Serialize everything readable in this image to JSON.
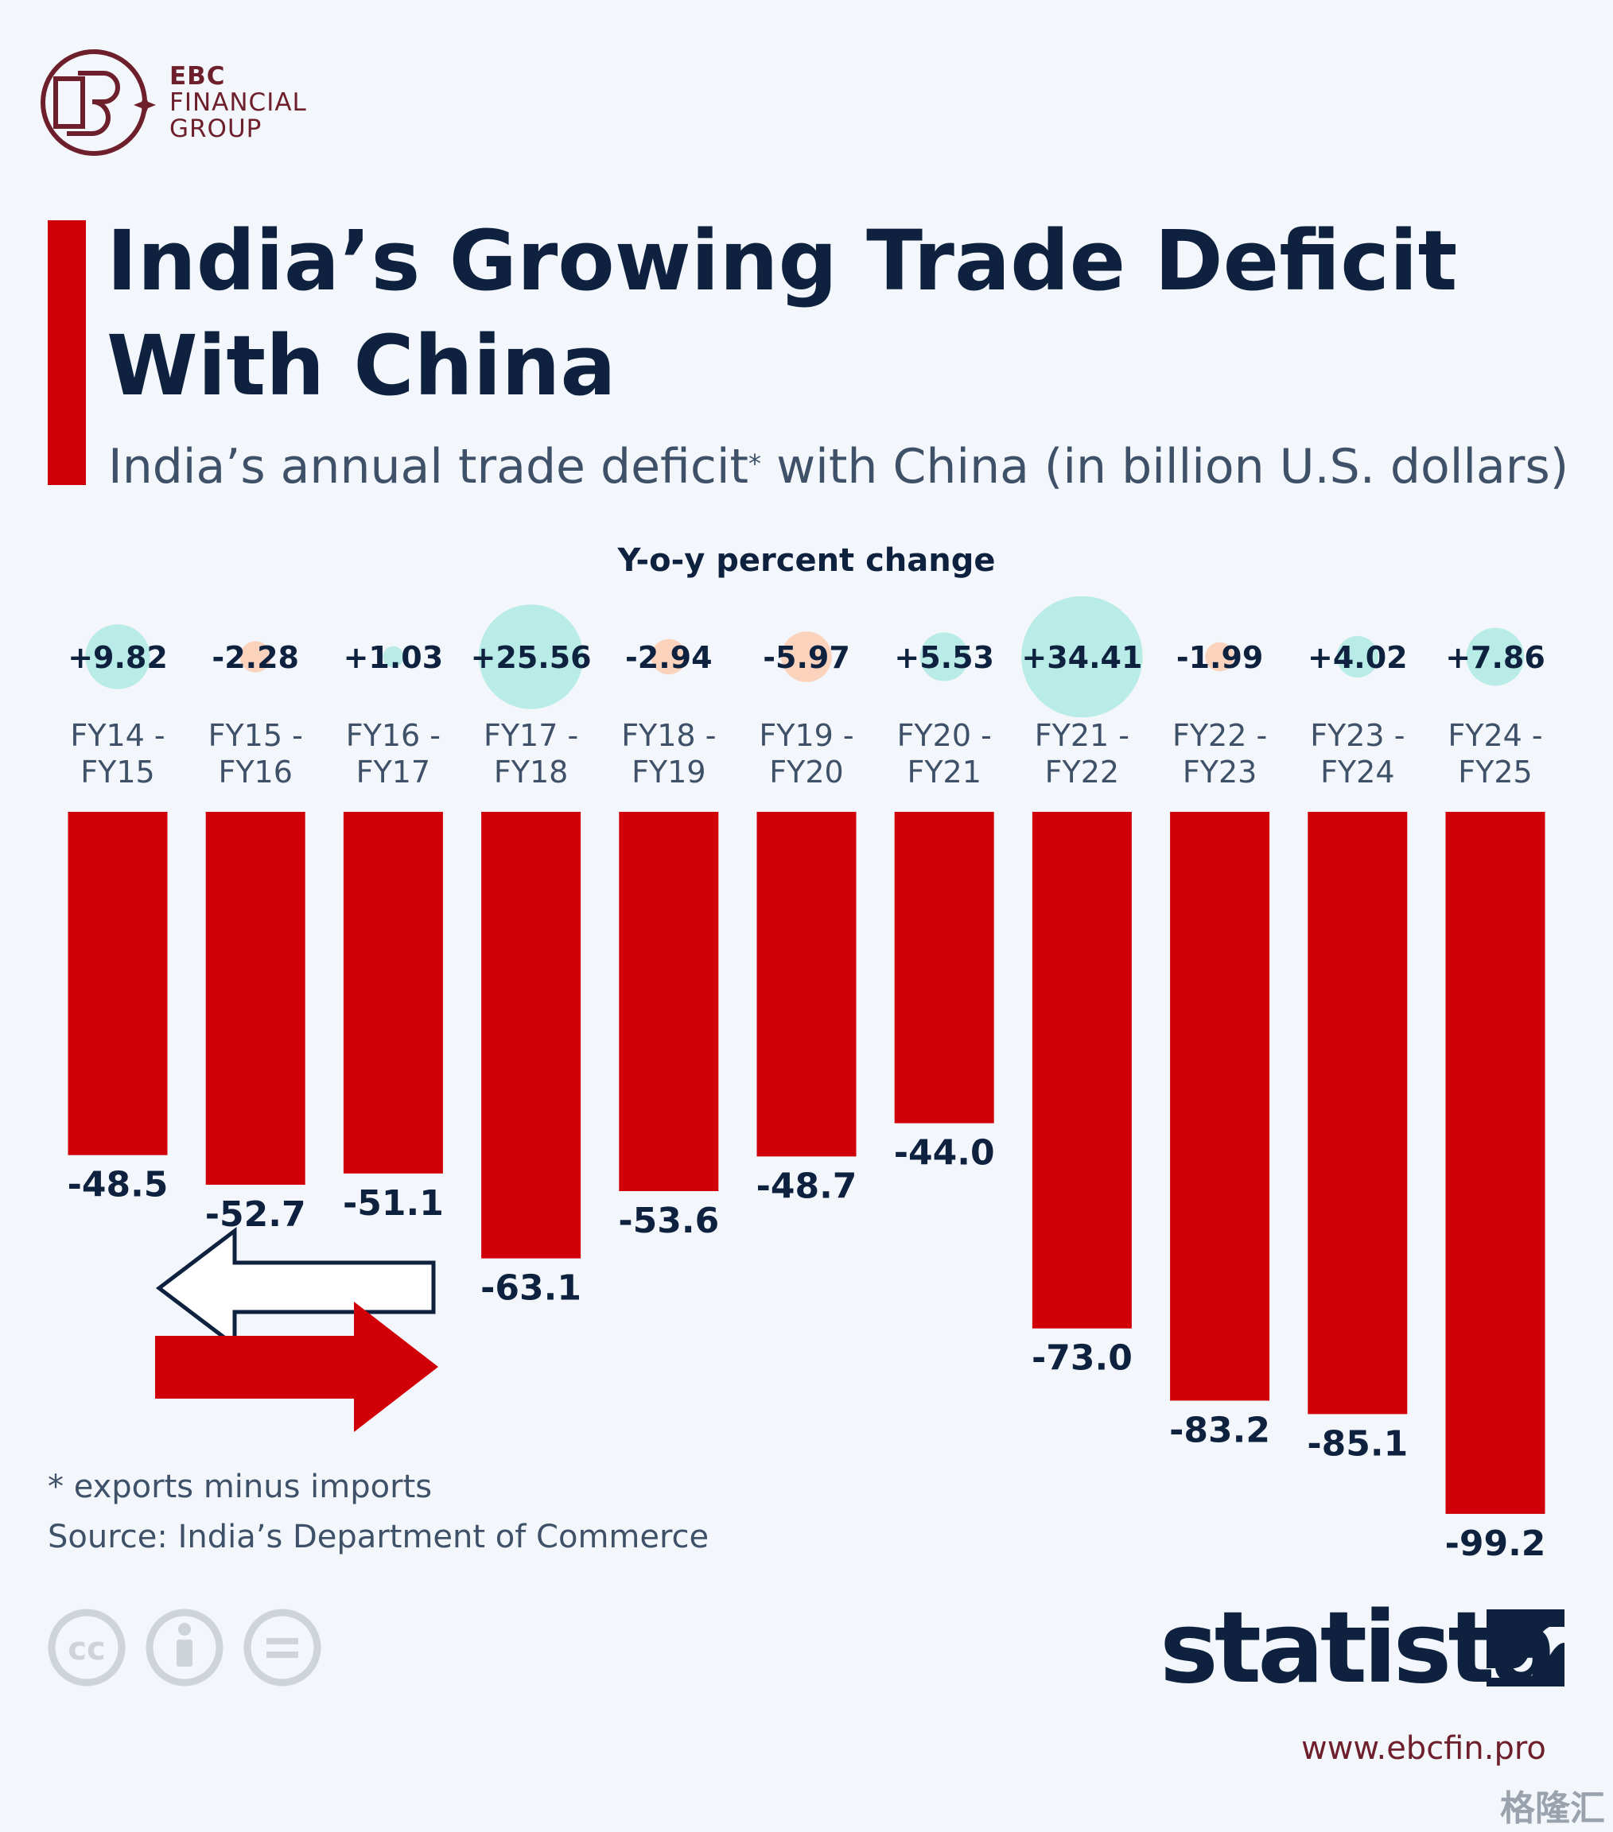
{
  "brand": {
    "line1": "EBC",
    "line2": "FINANCIAL",
    "line3": "GROUP"
  },
  "header": {
    "title_line1": "India’s Growing Trade Deficit",
    "title_line2": "With China",
    "subtitle_before": "India’s annual trade deficit",
    "subtitle_star": "*",
    "subtitle_after": " with China (in billion U.S. dollars)"
  },
  "yoy_title": "Y-o-y percent change",
  "footer": {
    "note": "* exports minus imports",
    "source": "Source: India’s Department of Commerce",
    "statista": "statista",
    "site": "www.ebcfin.pro",
    "watermark": "格隆汇"
  },
  "icons": [
    "ebc-logo-icon",
    "cc-icon",
    "by-person-icon",
    "nd-equals-icon",
    "statista-logo-icon",
    "trade-arrows-icon"
  ],
  "colors": {
    "bar": "#d10008",
    "positive_bubble": "#b9ece6",
    "negative_bubble": "#fbd3bd",
    "title": "#0e2240",
    "brand": "#6e1f2c",
    "background": "#f3f6fa"
  },
  "chart_data": {
    "type": "bar",
    "title": "India’s Growing Trade Deficit With China",
    "subtitle": "India’s annual trade deficit* with China (in billion U.S. dollars)",
    "categories": [
      [
        "FY14 -",
        "FY15"
      ],
      [
        "FY15 -",
        "FY16"
      ],
      [
        "FY16 -",
        "FY17"
      ],
      [
        "FY17 -",
        "FY18"
      ],
      [
        "FY18 -",
        "FY19"
      ],
      [
        "FY19 -",
        "FY20"
      ],
      [
        "FY20 -",
        "FY21"
      ],
      [
        "FY21 -",
        "FY22"
      ],
      [
        "FY22 -",
        "FY23"
      ],
      [
        "FY23 -",
        "FY24"
      ],
      [
        "FY24 -",
        "FY25"
      ]
    ],
    "values": [
      -48.5,
      -52.7,
      -51.1,
      -63.1,
      -53.6,
      -48.7,
      -44.0,
      -73.0,
      -83.2,
      -85.1,
      -99.2
    ],
    "value_labels": [
      "-48.5",
      "-52.7",
      "-51.1",
      "-63.1",
      "-53.6",
      "-48.7",
      "-44.0",
      "-73.0",
      "-83.2",
      "-85.1",
      "-99.2"
    ],
    "yoy_change": [
      9.82,
      -2.28,
      1.03,
      25.56,
      -2.94,
      -5.97,
      5.53,
      34.41,
      -1.99,
      4.02,
      7.86
    ],
    "yoy_labels": [
      "+9.82",
      "-2.28",
      "+1.03",
      "+25.56",
      "-2.94",
      "-5.97",
      "+5.53",
      "+34.41",
      "-1.99",
      "+4.02",
      "+7.86"
    ],
    "ylim": [
      -100,
      0
    ],
    "grid": false,
    "legend": "none"
  }
}
